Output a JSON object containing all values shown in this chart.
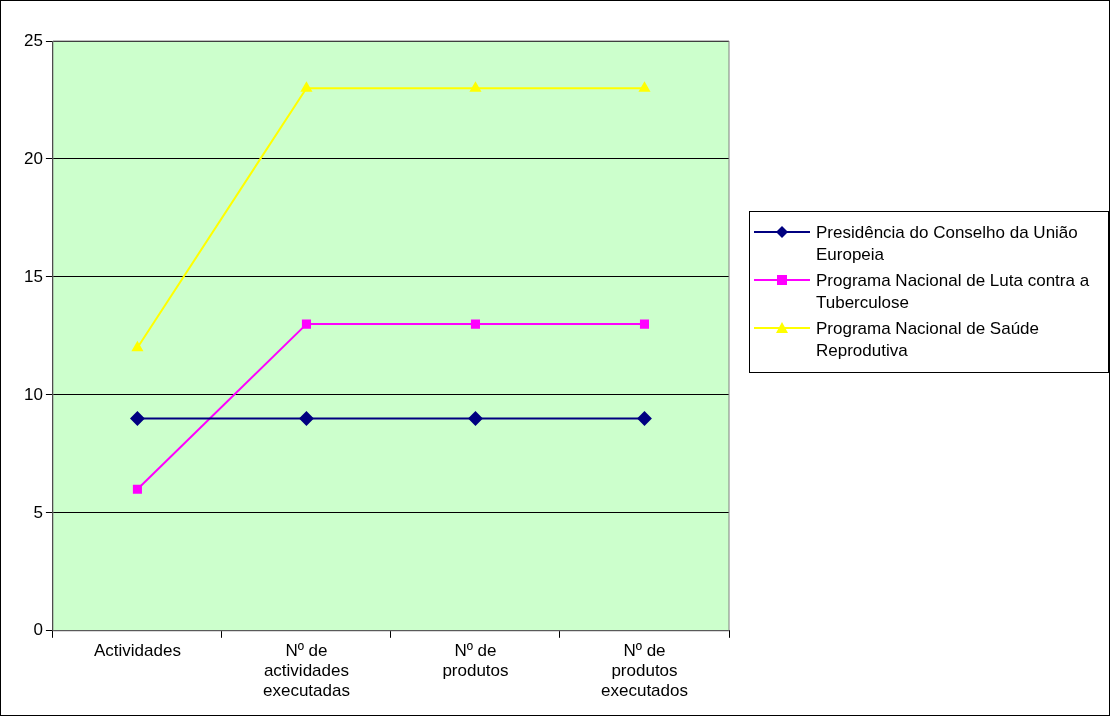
{
  "chart_data": {
    "type": "line",
    "categories": [
      "Actividades",
      "Nº de actividades executadas",
      "Nº de produtos",
      "Nº de produtos executados"
    ],
    "series": [
      {
        "name": "Presidência do Conselho da União Europeia",
        "color": "#000080",
        "marker": "diamond",
        "values": [
          9,
          9,
          9,
          9
        ]
      },
      {
        "name": "Programa Nacional de Luta contra a Tuberculose",
        "color": "#ff00ff",
        "marker": "square",
        "values": [
          6,
          13,
          13,
          13
        ]
      },
      {
        "name": "Programa Nacional de Saúde Reprodutiva",
        "color": "#ffff00",
        "marker": "triangle",
        "values": [
          12,
          23,
          23,
          23
        ]
      }
    ],
    "ylim": [
      0,
      25
    ],
    "yticks": [
      0,
      5,
      10,
      15,
      20,
      25
    ],
    "grid": "y",
    "legend": "right",
    "line_style": "solid"
  }
}
